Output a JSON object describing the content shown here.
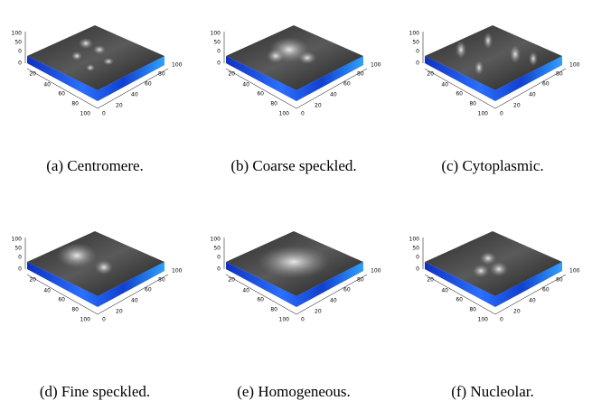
{
  "figure": {
    "axes": {
      "z_ticks": [
        100,
        50,
        0
      ],
      "left_ticks": [
        0,
        20,
        40,
        60,
        80,
        100
      ],
      "right_ticks": [
        0,
        20,
        40,
        60,
        80,
        100
      ]
    },
    "panels": [
      {
        "caption": "(a) Centromere."
      },
      {
        "caption": "(b) Coarse speckled."
      },
      {
        "caption": "(c) Cytoplasmic."
      },
      {
        "caption": "(d) Fine speckled."
      },
      {
        "caption": "(e) Homogeneous."
      },
      {
        "caption": "(f) Nucleolar."
      }
    ]
  }
}
